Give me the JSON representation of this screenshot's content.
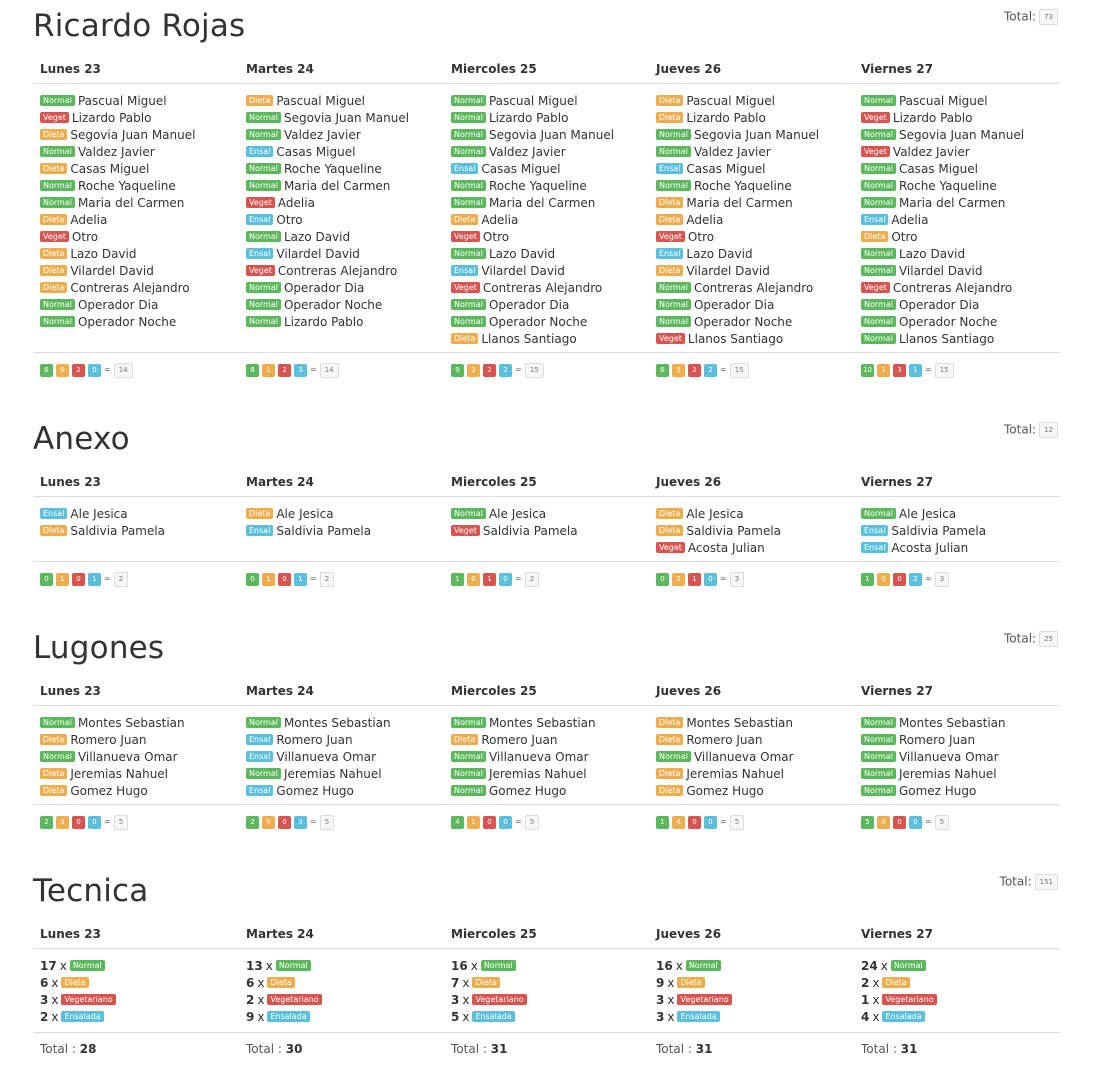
{
  "days": [
    "Lunes 23",
    "Martes 24",
    "Miercoles 25",
    "Jueves 26",
    "Viernes 27"
  ],
  "colors": {
    "Normal": "#5cb85c",
    "Dieta": "#f0ad4e",
    "Veget": "#d9534f",
    "Ensal": "#5bc0de"
  },
  "total_label": "Total:",
  "eq_symbol": "=",
  "sections": [
    {
      "title": "Ricardo Rojas",
      "total": "73",
      "columns": [
        {
          "items": [
            [
              "Normal",
              "Pascual Miguel"
            ],
            [
              "Veget",
              "Lizardo Pablo"
            ],
            [
              "Dieta",
              "Segovia Juan Manuel"
            ],
            [
              "Normal",
              "Valdez Javier"
            ],
            [
              "Dieta",
              "Casas Miguel"
            ],
            [
              "Normal",
              "Roche Yaqueline"
            ],
            [
              "Normal",
              "Maria del Carmen"
            ],
            [
              "Dieta",
              "Adelia"
            ],
            [
              "Veget",
              "Otro"
            ],
            [
              "Dieta",
              "Lazo David"
            ],
            [
              "Dieta",
              "Vilardel David"
            ],
            [
              "Dieta",
              "Contreras Alejandro"
            ],
            [
              "Normal",
              "Operador Dia"
            ],
            [
              "Normal",
              "Operador Noche"
            ]
          ],
          "counts": [
            "6",
            "6",
            "2",
            "0"
          ],
          "sum": "14"
        },
        {
          "items": [
            [
              "Dieta",
              "Pascual Miguel"
            ],
            [
              "Normal",
              "Segovia Juan Manuel"
            ],
            [
              "Normal",
              "Valdez Javier"
            ],
            [
              "Ensal",
              "Casas Miguel"
            ],
            [
              "Normal",
              "Roche Yaqueline"
            ],
            [
              "Normal",
              "Maria del Carmen"
            ],
            [
              "Veget",
              "Adelia"
            ],
            [
              "Ensal",
              "Otro"
            ],
            [
              "Normal",
              "Lazo David"
            ],
            [
              "Ensal",
              "Vilardel David"
            ],
            [
              "Veget",
              "Contreras Alejandro"
            ],
            [
              "Normal",
              "Operador Dia"
            ],
            [
              "Normal",
              "Operador Noche"
            ],
            [
              "Normal",
              "Lizardo Pablo"
            ]
          ],
          "counts": [
            "8",
            "1",
            "2",
            "3"
          ],
          "sum": "14"
        },
        {
          "items": [
            [
              "Normal",
              "Pascual Miguel"
            ],
            [
              "Normal",
              "Lizardo Pablo"
            ],
            [
              "Normal",
              "Segovia Juan Manuel"
            ],
            [
              "Normal",
              "Valdez Javier"
            ],
            [
              "Ensal",
              "Casas Miguel"
            ],
            [
              "Normal",
              "Roche Yaqueline"
            ],
            [
              "Normal",
              "Maria del Carmen"
            ],
            [
              "Dieta",
              "Adelia"
            ],
            [
              "Veget",
              "Otro"
            ],
            [
              "Normal",
              "Lazo David"
            ],
            [
              "Ensal",
              "Vilardel David"
            ],
            [
              "Veget",
              "Contreras Alejandro"
            ],
            [
              "Normal",
              "Operador Dia"
            ],
            [
              "Normal",
              "Operador Noche"
            ],
            [
              "Dieta",
              "Llanos Santiago"
            ]
          ],
          "counts": [
            "9",
            "2",
            "2",
            "2"
          ],
          "sum": "15"
        },
        {
          "items": [
            [
              "Dieta",
              "Pascual Miguel"
            ],
            [
              "Dieta",
              "Lizardo Pablo"
            ],
            [
              "Normal",
              "Segovia Juan Manuel"
            ],
            [
              "Normal",
              "Valdez Javier"
            ],
            [
              "Ensal",
              "Casas Miguel"
            ],
            [
              "Normal",
              "Roche Yaqueline"
            ],
            [
              "Dieta",
              "Maria del Carmen"
            ],
            [
              "Dieta",
              "Adelia"
            ],
            [
              "Veget",
              "Otro"
            ],
            [
              "Ensal",
              "Lazo David"
            ],
            [
              "Dieta",
              "Vilardel David"
            ],
            [
              "Normal",
              "Contreras Alejandro"
            ],
            [
              "Normal",
              "Operador Dia"
            ],
            [
              "Normal",
              "Operador Noche"
            ],
            [
              "Veget",
              "Llanos Santiago"
            ]
          ],
          "counts": [
            "6",
            "5",
            "2",
            "2"
          ],
          "sum": "15"
        },
        {
          "items": [
            [
              "Normal",
              "Pascual Miguel"
            ],
            [
              "Veget",
              "Lizardo Pablo"
            ],
            [
              "Normal",
              "Segovia Juan Manuel"
            ],
            [
              "Veget",
              "Valdez Javier"
            ],
            [
              "Normal",
              "Casas Miguel"
            ],
            [
              "Normal",
              "Roche Yaqueline"
            ],
            [
              "Normal",
              "Maria del Carmen"
            ],
            [
              "Ensal",
              "Adelia"
            ],
            [
              "Dieta",
              "Otro"
            ],
            [
              "Normal",
              "Lazo David"
            ],
            [
              "Normal",
              "Vilardel David"
            ],
            [
              "Veget",
              "Contreras Alejandro"
            ],
            [
              "Normal",
              "Operador Dia"
            ],
            [
              "Normal",
              "Operador Noche"
            ],
            [
              "Normal",
              "Llanos Santiago"
            ]
          ],
          "counts": [
            "10",
            "1",
            "3",
            "1"
          ],
          "sum": "15"
        }
      ]
    },
    {
      "title": "Anexo",
      "total": "12",
      "columns": [
        {
          "items": [
            [
              "Ensal",
              "Ale Jesica"
            ],
            [
              "Dieta",
              "Saldivia Pamela"
            ]
          ],
          "counts": [
            "0",
            "1",
            "0",
            "1"
          ],
          "sum": "2"
        },
        {
          "items": [
            [
              "Dieta",
              "Ale Jesica"
            ],
            [
              "Ensal",
              "Saldivia Pamela"
            ]
          ],
          "counts": [
            "0",
            "1",
            "0",
            "1"
          ],
          "sum": "2"
        },
        {
          "items": [
            [
              "Normal",
              "Ale Jesica"
            ],
            [
              "Veget",
              "Saldivia Pamela"
            ]
          ],
          "counts": [
            "1",
            "0",
            "1",
            "0"
          ],
          "sum": "2"
        },
        {
          "items": [
            [
              "Dieta",
              "Ale Jesica"
            ],
            [
              "Dieta",
              "Saldivia Pamela"
            ],
            [
              "Veget",
              "Acosta Julian"
            ]
          ],
          "counts": [
            "0",
            "2",
            "1",
            "0"
          ],
          "sum": "3"
        },
        {
          "items": [
            [
              "Normal",
              "Ale Jesica"
            ],
            [
              "Ensal",
              "Saldivia Pamela"
            ],
            [
              "Ensal",
              "Acosta Julian"
            ]
          ],
          "counts": [
            "1",
            "0",
            "0",
            "2"
          ],
          "sum": "3"
        }
      ]
    },
    {
      "title": "Lugones",
      "total": "25",
      "columns": [
        {
          "items": [
            [
              "Normal",
              "Montes Sebastian"
            ],
            [
              "Dieta",
              "Romero Juan"
            ],
            [
              "Normal",
              "Villanueva Omar"
            ],
            [
              "Dieta",
              "Jeremias Nahuel"
            ],
            [
              "Dieta",
              "Gomez Hugo"
            ]
          ],
          "counts": [
            "2",
            "3",
            "0",
            "0"
          ],
          "sum": "5"
        },
        {
          "items": [
            [
              "Normal",
              "Montes Sebastian"
            ],
            [
              "Ensal",
              "Romero Juan"
            ],
            [
              "Ensal",
              "Villanueva Omar"
            ],
            [
              "Normal",
              "Jeremias Nahuel"
            ],
            [
              "Ensal",
              "Gomez Hugo"
            ]
          ],
          "counts": [
            "2",
            "0",
            "0",
            "3"
          ],
          "sum": "5"
        },
        {
          "items": [
            [
              "Normal",
              "Montes Sebastian"
            ],
            [
              "Dieta",
              "Romero Juan"
            ],
            [
              "Normal",
              "Villanueva Omar"
            ],
            [
              "Normal",
              "Jeremias Nahuel"
            ],
            [
              "Normal",
              "Gomez Hugo"
            ]
          ],
          "counts": [
            "4",
            "1",
            "0",
            "0"
          ],
          "sum": "5"
        },
        {
          "items": [
            [
              "Dieta",
              "Montes Sebastian"
            ],
            [
              "Dieta",
              "Romero Juan"
            ],
            [
              "Normal",
              "Villanueva Omar"
            ],
            [
              "Dieta",
              "Jeremias Nahuel"
            ],
            [
              "Dieta",
              "Gomez Hugo"
            ]
          ],
          "counts": [
            "1",
            "4",
            "0",
            "0"
          ],
          "sum": "5"
        },
        {
          "items": [
            [
              "Normal",
              "Montes Sebastian"
            ],
            [
              "Normal",
              "Romero Juan"
            ],
            [
              "Normal",
              "Villanueva Omar"
            ],
            [
              "Normal",
              "Jeremias Nahuel"
            ],
            [
              "Normal",
              "Gomez Hugo"
            ]
          ],
          "counts": [
            "5",
            "0",
            "0",
            "0"
          ],
          "sum": "5"
        }
      ]
    }
  ],
  "tecnica": {
    "title": "Tecnica",
    "total": "151",
    "total_prefix": "Total :",
    "times": "x",
    "labels": [
      "Normal",
      "Dieta",
      "Vegetariano",
      "Ensalada"
    ],
    "columns": [
      {
        "counts": [
          "17",
          "6",
          "3",
          "2"
        ],
        "total": "28"
      },
      {
        "counts": [
          "13",
          "6",
          "2",
          "9"
        ],
        "total": "30"
      },
      {
        "counts": [
          "16",
          "7",
          "3",
          "5"
        ],
        "total": "31"
      },
      {
        "counts": [
          "16",
          "9",
          "3",
          "3"
        ],
        "total": "31"
      },
      {
        "counts": [
          "24",
          "2",
          "1",
          "4"
        ],
        "total": "31"
      }
    ]
  }
}
